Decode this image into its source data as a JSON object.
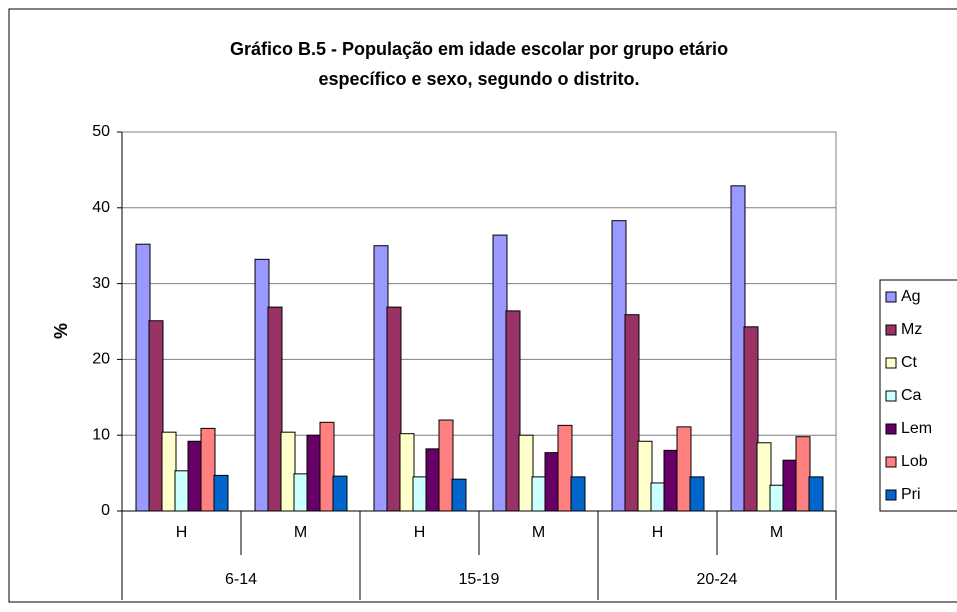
{
  "chart_data": {
    "type": "bar",
    "title": "Gráfico B.5 - População em idade escolar por grupo etário",
    "subtitle": "específico e sexo, segundo o distrito.",
    "y_label": "%",
    "categories": [
      "H",
      "M",
      "H",
      "M",
      "H",
      "M"
    ],
    "groups": [
      "6-14",
      "15-19",
      "20-24"
    ],
    "series": [
      {
        "name": "Ag",
        "color": "#9999ff",
        "values": [
          35.2,
          33.2,
          35.0,
          36.4,
          38.3,
          42.9
        ]
      },
      {
        "name": "Mz",
        "color": "#993366",
        "values": [
          25.1,
          26.9,
          26.9,
          26.4,
          25.9,
          24.3
        ]
      },
      {
        "name": "Ct",
        "color": "#ffffcc",
        "values": [
          10.4,
          10.4,
          10.2,
          10.0,
          9.2,
          9.0
        ]
      },
      {
        "name": "Ca",
        "color": "#ccffff",
        "values": [
          5.3,
          4.9,
          4.5,
          4.5,
          3.7,
          3.4
        ]
      },
      {
        "name": "Lem",
        "color": "#660066",
        "values": [
          9.2,
          10.0,
          8.2,
          7.7,
          8.0,
          6.7
        ]
      },
      {
        "name": "Lob",
        "color": "#ff8080",
        "values": [
          10.9,
          11.7,
          12.0,
          11.3,
          11.1,
          9.8
        ]
      },
      {
        "name": "Pri",
        "color": "#0066cc",
        "values": [
          4.7,
          4.6,
          4.2,
          4.5,
          4.5,
          4.5
        ]
      }
    ],
    "ylim": [
      0,
      50
    ],
    "yticks": [
      0,
      10,
      20,
      30,
      40,
      50
    ],
    "grid": true,
    "legend": "right"
  }
}
